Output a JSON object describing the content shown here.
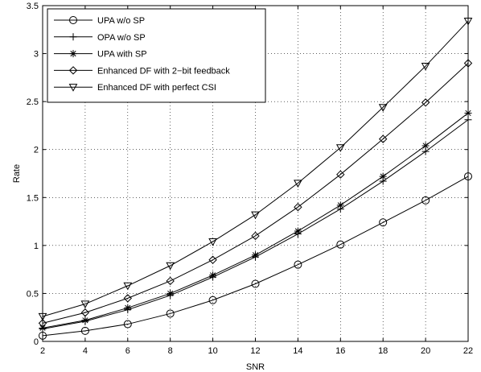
{
  "chart_data": {
    "type": "line",
    "title": "",
    "xlabel": "SNR",
    "ylabel": "Rate",
    "xlim": [
      2,
      22
    ],
    "ylim": [
      0,
      3.5
    ],
    "x": [
      2,
      4,
      6,
      8,
      10,
      12,
      14,
      16,
      18,
      20,
      22
    ],
    "xticks": [
      "2",
      "4",
      "6",
      "8",
      "10",
      "12",
      "14",
      "16",
      "18",
      "20",
      "22"
    ],
    "yticks": [
      "0",
      "0.5",
      "1",
      "1.5",
      "2",
      "2.5",
      "3",
      "3.5"
    ],
    "grid": true,
    "legend_position": "top-left",
    "series": [
      {
        "name": "UPA w/o SP",
        "marker": "circle",
        "values": [
          0.06,
          0.11,
          0.18,
          0.29,
          0.43,
          0.6,
          0.8,
          1.01,
          1.24,
          1.47,
          1.72
        ]
      },
      {
        "name": "OPA w/o SP",
        "marker": "plus",
        "values": [
          0.13,
          0.21,
          0.33,
          0.48,
          0.67,
          0.88,
          1.12,
          1.38,
          1.67,
          1.98,
          2.31
        ]
      },
      {
        "name": "UPA with SP",
        "marker": "star",
        "values": [
          0.14,
          0.22,
          0.35,
          0.5,
          0.69,
          0.9,
          1.15,
          1.42,
          1.72,
          2.04,
          2.38
        ]
      },
      {
        "name": "Enhanced DF with 2−bit feedback",
        "marker": "diamond",
        "values": [
          0.19,
          0.3,
          0.45,
          0.63,
          0.85,
          1.1,
          1.4,
          1.74,
          2.11,
          2.49,
          2.9
        ]
      },
      {
        "name": "Enhanced DF with perfect CSI",
        "marker": "triangle-down",
        "values": [
          0.26,
          0.39,
          0.58,
          0.79,
          1.04,
          1.32,
          1.65,
          2.02,
          2.44,
          2.87,
          3.34
        ]
      }
    ]
  }
}
